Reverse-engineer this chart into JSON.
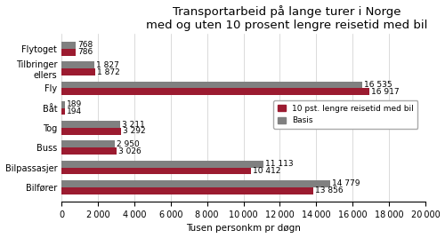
{
  "title": "Transportarbeid på lange turer i Norge\nmed og uten 10 prosent lengre reisetid med bil",
  "categories": [
    "Flytoget",
    "Tilbringer\nellers",
    "Fly",
    "Båt",
    "Tog",
    "Buss",
    "Bilpassasjer",
    "Bilfører"
  ],
  "values_red": [
    786,
    1872,
    16917,
    194,
    3292,
    3026,
    10412,
    13856
  ],
  "values_gray": [
    768,
    1827,
    16535,
    189,
    3211,
    2950,
    11113,
    14779
  ],
  "labels_red": [
    "786",
    "1 872",
    "16 917",
    "194",
    "3 292",
    "3 026",
    "10 412",
    "13 856"
  ],
  "labels_gray": [
    "768",
    "1 827",
    "16 535",
    "189",
    "3 211",
    "2 950",
    "11 113",
    "14 779"
  ],
  "color_red": "#9B1B30",
  "color_gray": "#808080",
  "xlabel": "Tusen personkm pr døgn",
  "xlim": [
    0,
    20000
  ],
  "xticks": [
    0,
    2000,
    4000,
    6000,
    8000,
    10000,
    12000,
    14000,
    16000,
    18000,
    20000
  ],
  "legend_red": "10 pst. lengre reisetid med bil",
  "legend_gray": "Basis",
  "bar_height": 0.35,
  "background_color": "#ffffff",
  "title_fontsize": 9.5,
  "label_fontsize": 6.5,
  "axis_fontsize": 7.5,
  "tick_fontsize": 7
}
